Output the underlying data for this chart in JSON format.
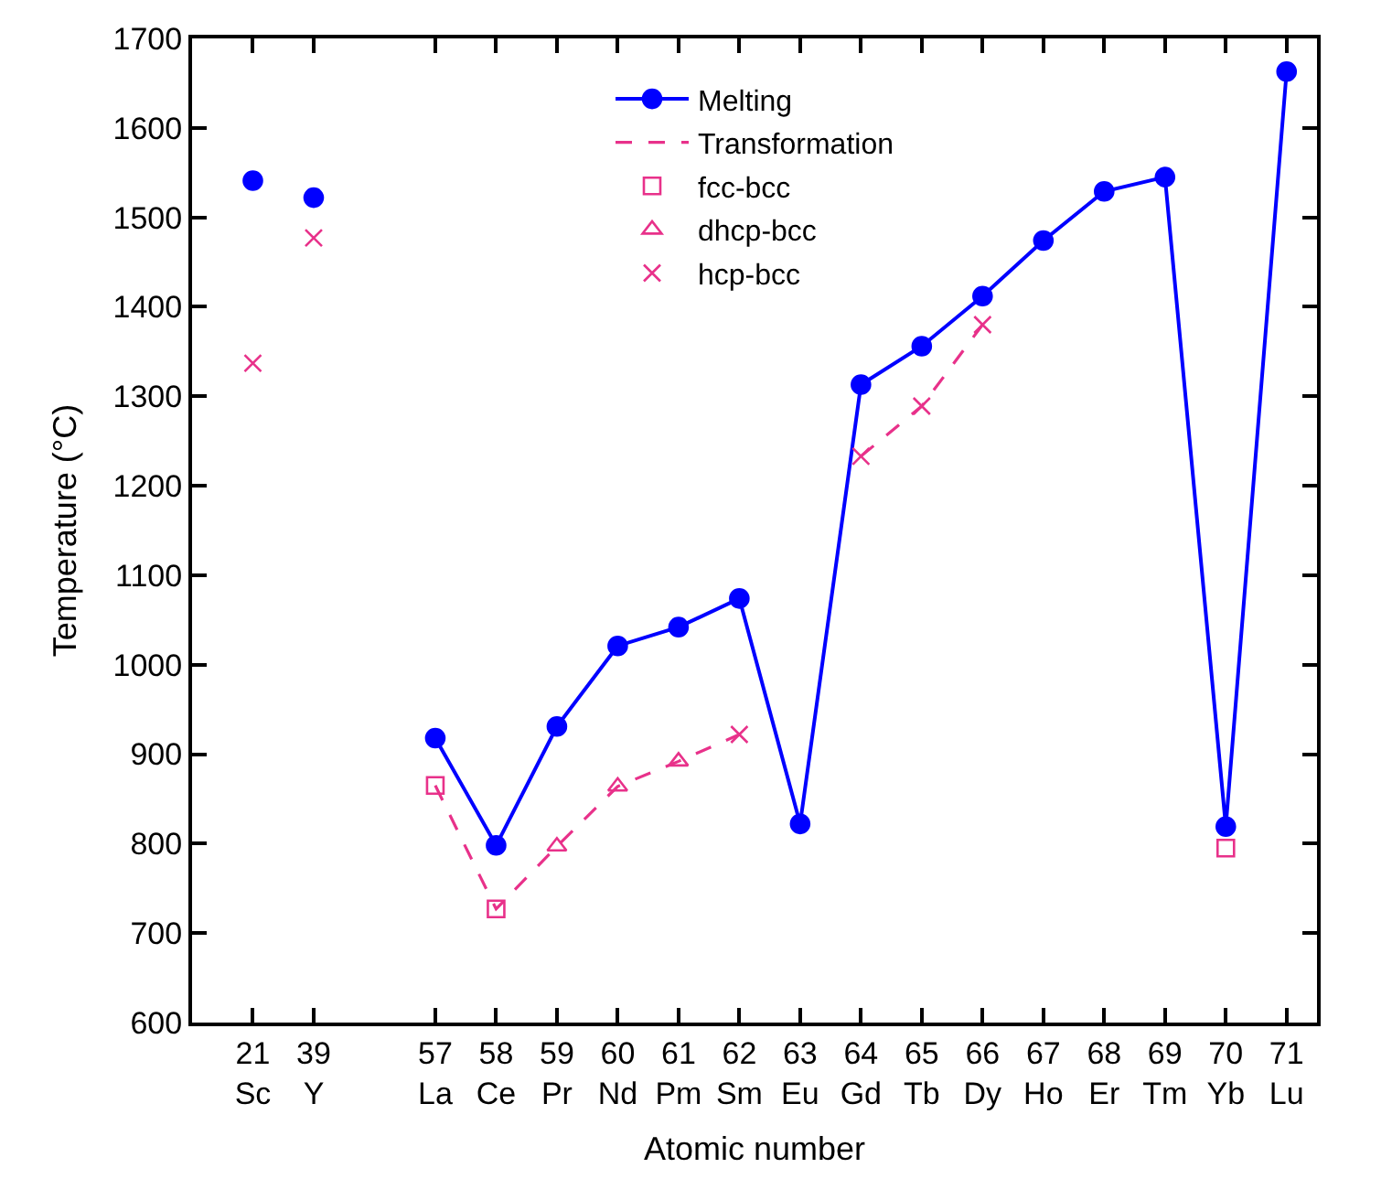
{
  "chart_data": {
    "type": "line",
    "xlabel": "Atomic number",
    "ylabel": "Temperature (°C)",
    "categories": [
      "21\nSc",
      "39\nY",
      null,
      "57\nLa",
      "58\nCe",
      "59\nPr",
      "60\nNd",
      "61\nPm",
      "62\nSm",
      "63\nEu",
      "64\nGd",
      "65\nTb",
      "66\nDy",
      "67\nHo",
      "68\nEr",
      "69\nTm",
      "70\nYb",
      "71\nLu"
    ],
    "ylim": [
      600,
      1700
    ],
    "yticks": [
      600,
      700,
      800,
      900,
      1000,
      1100,
      1200,
      1300,
      1400,
      1500,
      1600,
      1700
    ],
    "legend": "top",
    "series": [
      {
        "name": "Melting",
        "marker": "circle",
        "line_style": "solid",
        "color": "#0000ff",
        "values": [
          null,
          null,
          null,
          918,
          798,
          931,
          1021,
          1042,
          1074,
          822,
          1313,
          1356,
          1412,
          1474,
          1529,
          1545,
          819,
          1663
        ]
      },
      {
        "type": "scatter",
        "marker": "circle",
        "color": "#0000ff",
        "values": [
          1541,
          1522,
          null,
          null,
          null,
          null,
          null,
          null,
          null,
          null,
          null,
          null,
          null,
          null,
          null,
          null,
          null,
          null
        ]
      },
      {
        "name": "Transformation",
        "marker": "none",
        "line_style": "dashed",
        "color": "#e8318a",
        "values": [
          null,
          null,
          null,
          865,
          727,
          797,
          864,
          892,
          922,
          null,
          1233,
          1289,
          1380,
          null,
          null,
          null,
          null,
          null
        ]
      },
      {
        "name": "fcc-bcc",
        "type": "scatter",
        "marker": "square",
        "color": "#e8318a",
        "values": [
          null,
          null,
          null,
          865,
          727,
          null,
          null,
          null,
          null,
          null,
          null,
          null,
          null,
          null,
          null,
          null,
          795,
          null
        ]
      },
      {
        "name": "dhcp-bcc",
        "type": "scatter",
        "marker": "triangle",
        "color": "#e8318a",
        "values": [
          null,
          null,
          null,
          null,
          null,
          797,
          864,
          892,
          null,
          null,
          null,
          null,
          null,
          null,
          null,
          null,
          null,
          null
        ]
      },
      {
        "name": "hcp-bcc",
        "type": "scatter",
        "marker": "cross",
        "color": "#e8318a",
        "values": [
          1337,
          1477,
          null,
          null,
          null,
          null,
          null,
          null,
          922,
          null,
          1233,
          1289,
          1380,
          null,
          null,
          null,
          null,
          null
        ]
      }
    ]
  }
}
